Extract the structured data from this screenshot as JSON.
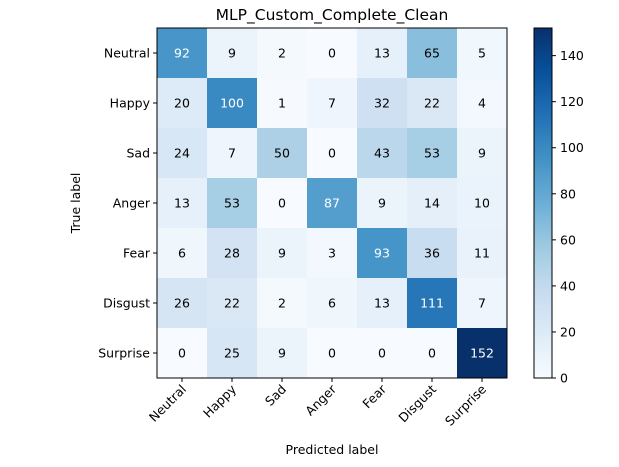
{
  "chart_data": {
    "type": "heatmap",
    "title": "MLP_Custom_Complete_Clean",
    "xlabel": "Predicted label",
    "ylabel": "True label",
    "x_categories": [
      "Neutral",
      "Happy",
      "Sad",
      "Anger",
      "Fear",
      "Disgust",
      "Surprise"
    ],
    "y_categories": [
      "Neutral",
      "Happy",
      "Sad",
      "Anger",
      "Fear",
      "Disgust",
      "Surprise"
    ],
    "matrix": [
      [
        92,
        9,
        2,
        0,
        13,
        65,
        5
      ],
      [
        20,
        100,
        1,
        7,
        32,
        22,
        4
      ],
      [
        24,
        7,
        50,
        0,
        43,
        53,
        9
      ],
      [
        13,
        53,
        0,
        87,
        9,
        14,
        10
      ],
      [
        6,
        28,
        9,
        3,
        93,
        36,
        11
      ],
      [
        26,
        22,
        2,
        6,
        13,
        111,
        7
      ],
      [
        0,
        25,
        9,
        0,
        0,
        0,
        152
      ]
    ],
    "colormap": "Blues",
    "colorbar": {
      "range": [
        0,
        152
      ],
      "ticks": [
        "0",
        "20",
        "40",
        "60",
        "80",
        "100",
        "120",
        "140"
      ]
    },
    "grid": false
  }
}
